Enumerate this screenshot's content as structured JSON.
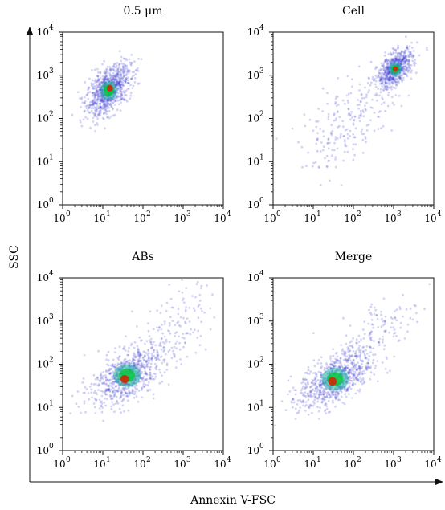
{
  "figure": {
    "ylabel": "SSC",
    "xlabel": "Annexin V-FSC",
    "tick_base": "10",
    "tick_exponents": [
      "0",
      "1",
      "2",
      "3",
      "4"
    ]
  },
  "colors": {
    "density_low": "#3c3cd2",
    "density_mid": "#1eb4a0",
    "density_high": "#00c832",
    "density_peak": "#dc1e00"
  },
  "chart_data": [
    {
      "type": "scatter",
      "title": "0.5 μm",
      "x_scale": "log",
      "y_scale": "log",
      "xlim": [
        1,
        10000
      ],
      "ylim": [
        1,
        10000
      ],
      "density_clusters": [
        {
          "x": 14,
          "y": 450,
          "spread_x_dex": 0.28,
          "spread_y_dex": 0.3,
          "weight": 1.0
        }
      ],
      "peak": {
        "x": 15,
        "y": 500
      }
    },
    {
      "type": "scatter",
      "title": "Cell",
      "x_scale": "log",
      "y_scale": "log",
      "xlim": [
        1,
        10000
      ],
      "ylim": [
        1,
        10000
      ],
      "density_clusters": [
        {
          "x": 1100,
          "y": 1400,
          "spread_x_dex": 0.22,
          "spread_y_dex": 0.22,
          "weight": 0.75
        },
        {
          "x": 80,
          "y": 80,
          "spread_x_dex": 0.6,
          "spread_y_dex": 0.55,
          "weight": 0.25
        }
      ],
      "peak": {
        "x": 1100,
        "y": 1400
      }
    },
    {
      "type": "scatter",
      "title": "ABs",
      "x_scale": "log",
      "y_scale": "log",
      "xlim": [
        1,
        10000
      ],
      "ylim": [
        1,
        10000
      ],
      "density_clusters": [
        {
          "x": 40,
          "y": 55,
          "spread_x_dex": 0.45,
          "spread_y_dex": 0.35,
          "weight": 0.85
        },
        {
          "x": 600,
          "y": 700,
          "spread_x_dex": 0.5,
          "spread_y_dex": 0.5,
          "weight": 0.15
        }
      ],
      "peak": {
        "x": 35,
        "y": 45
      }
    },
    {
      "type": "scatter",
      "title": "Merge",
      "x_scale": "log",
      "y_scale": "log",
      "xlim": [
        1,
        10000
      ],
      "ylim": [
        1,
        10000
      ],
      "density_clusters": [
        {
          "x": 35,
          "y": 45,
          "spread_x_dex": 0.45,
          "spread_y_dex": 0.35,
          "weight": 0.85
        },
        {
          "x": 500,
          "y": 600,
          "spread_x_dex": 0.5,
          "spread_y_dex": 0.5,
          "weight": 0.15
        }
      ],
      "peak": {
        "x": 30,
        "y": 40
      }
    }
  ]
}
